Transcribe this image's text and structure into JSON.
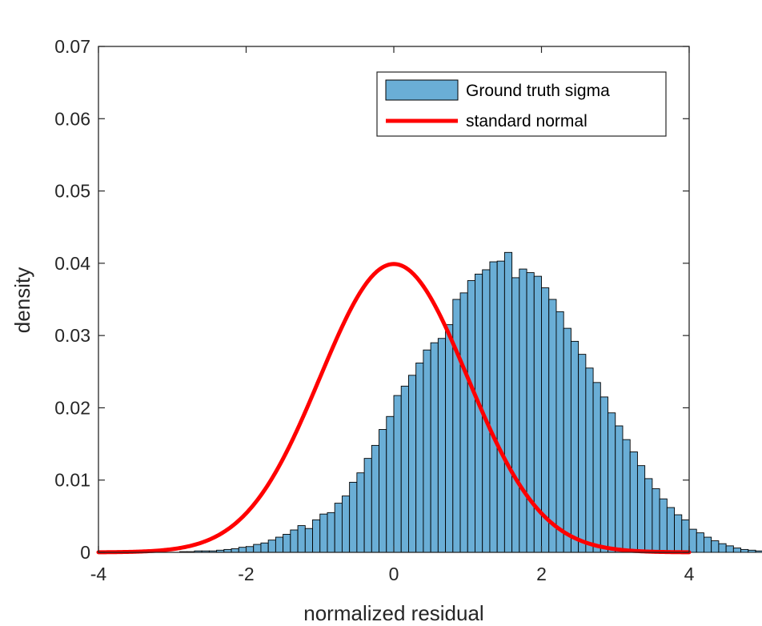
{
  "chart_data": {
    "type": "bar",
    "title": "",
    "xlabel": "normalized residual",
    "ylabel": "density",
    "xlim": [
      -4,
      4
    ],
    "ylim": [
      0,
      0.07
    ],
    "grid": false,
    "legend_location": "top-right",
    "x_ticks": [
      -4,
      -2,
      0,
      2,
      4
    ],
    "x_tick_labels": [
      "-4",
      "-2",
      "0",
      "2",
      "4"
    ],
    "y_ticks": [
      0,
      0.01,
      0.02,
      0.03,
      0.04,
      0.05,
      0.06,
      0.07
    ],
    "y_tick_labels": [
      "0",
      "0.01",
      "0.02",
      "0.03",
      "0.04",
      "0.05",
      "0.06",
      "0.07"
    ],
    "bin_width": 0.1,
    "series": [
      {
        "name": "Ground truth sigma",
        "kind": "histogram",
        "color": "#6aaed6",
        "edge_color": "#000000",
        "bin_start": -4.0,
        "values": [
          0.0,
          0.0,
          0.0,
          0.0,
          0.0,
          0.0,
          0.0,
          0.0,
          0.0,
          0.0,
          0.0,
          0.0001,
          0.0001,
          0.0002,
          0.0002,
          0.0002,
          0.0003,
          0.0004,
          0.0005,
          0.0007,
          0.0008,
          0.0011,
          0.0013,
          0.0017,
          0.0021,
          0.0025,
          0.0031,
          0.0037,
          0.0033,
          0.0045,
          0.0053,
          0.0055,
          0.0068,
          0.0078,
          0.0097,
          0.011,
          0.013,
          0.0148,
          0.017,
          0.0188,
          0.0217,
          0.023,
          0.0245,
          0.0262,
          0.028,
          0.029,
          0.0296,
          0.0315,
          0.035,
          0.0359,
          0.0376,
          0.0385,
          0.0391,
          0.0402,
          0.0403,
          0.0415,
          0.038,
          0.0392,
          0.0387,
          0.0382,
          0.0366,
          0.035,
          0.0333,
          0.031,
          0.0292,
          0.0274,
          0.0255,
          0.0235,
          0.0215,
          0.0193,
          0.0175,
          0.0156,
          0.0139,
          0.012,
          0.0102,
          0.0088,
          0.0074,
          0.0062,
          0.0052,
          0.0045,
          0.0032,
          0.0027,
          0.0021,
          0.0016,
          0.0012,
          0.0009,
          0.0006,
          0.0004,
          0.0003,
          0.0002,
          0.0001,
          0.0001,
          0.0,
          0.0,
          0.0,
          0.0,
          0.0,
          0.0,
          0.0,
          0.0
        ]
      },
      {
        "name": "standard normal",
        "kind": "line",
        "color": "#ff0000",
        "function": "0.1 * exp(-x^2/2) / sqrt(2*pi)",
        "peak_value": 0.0399
      }
    ]
  }
}
